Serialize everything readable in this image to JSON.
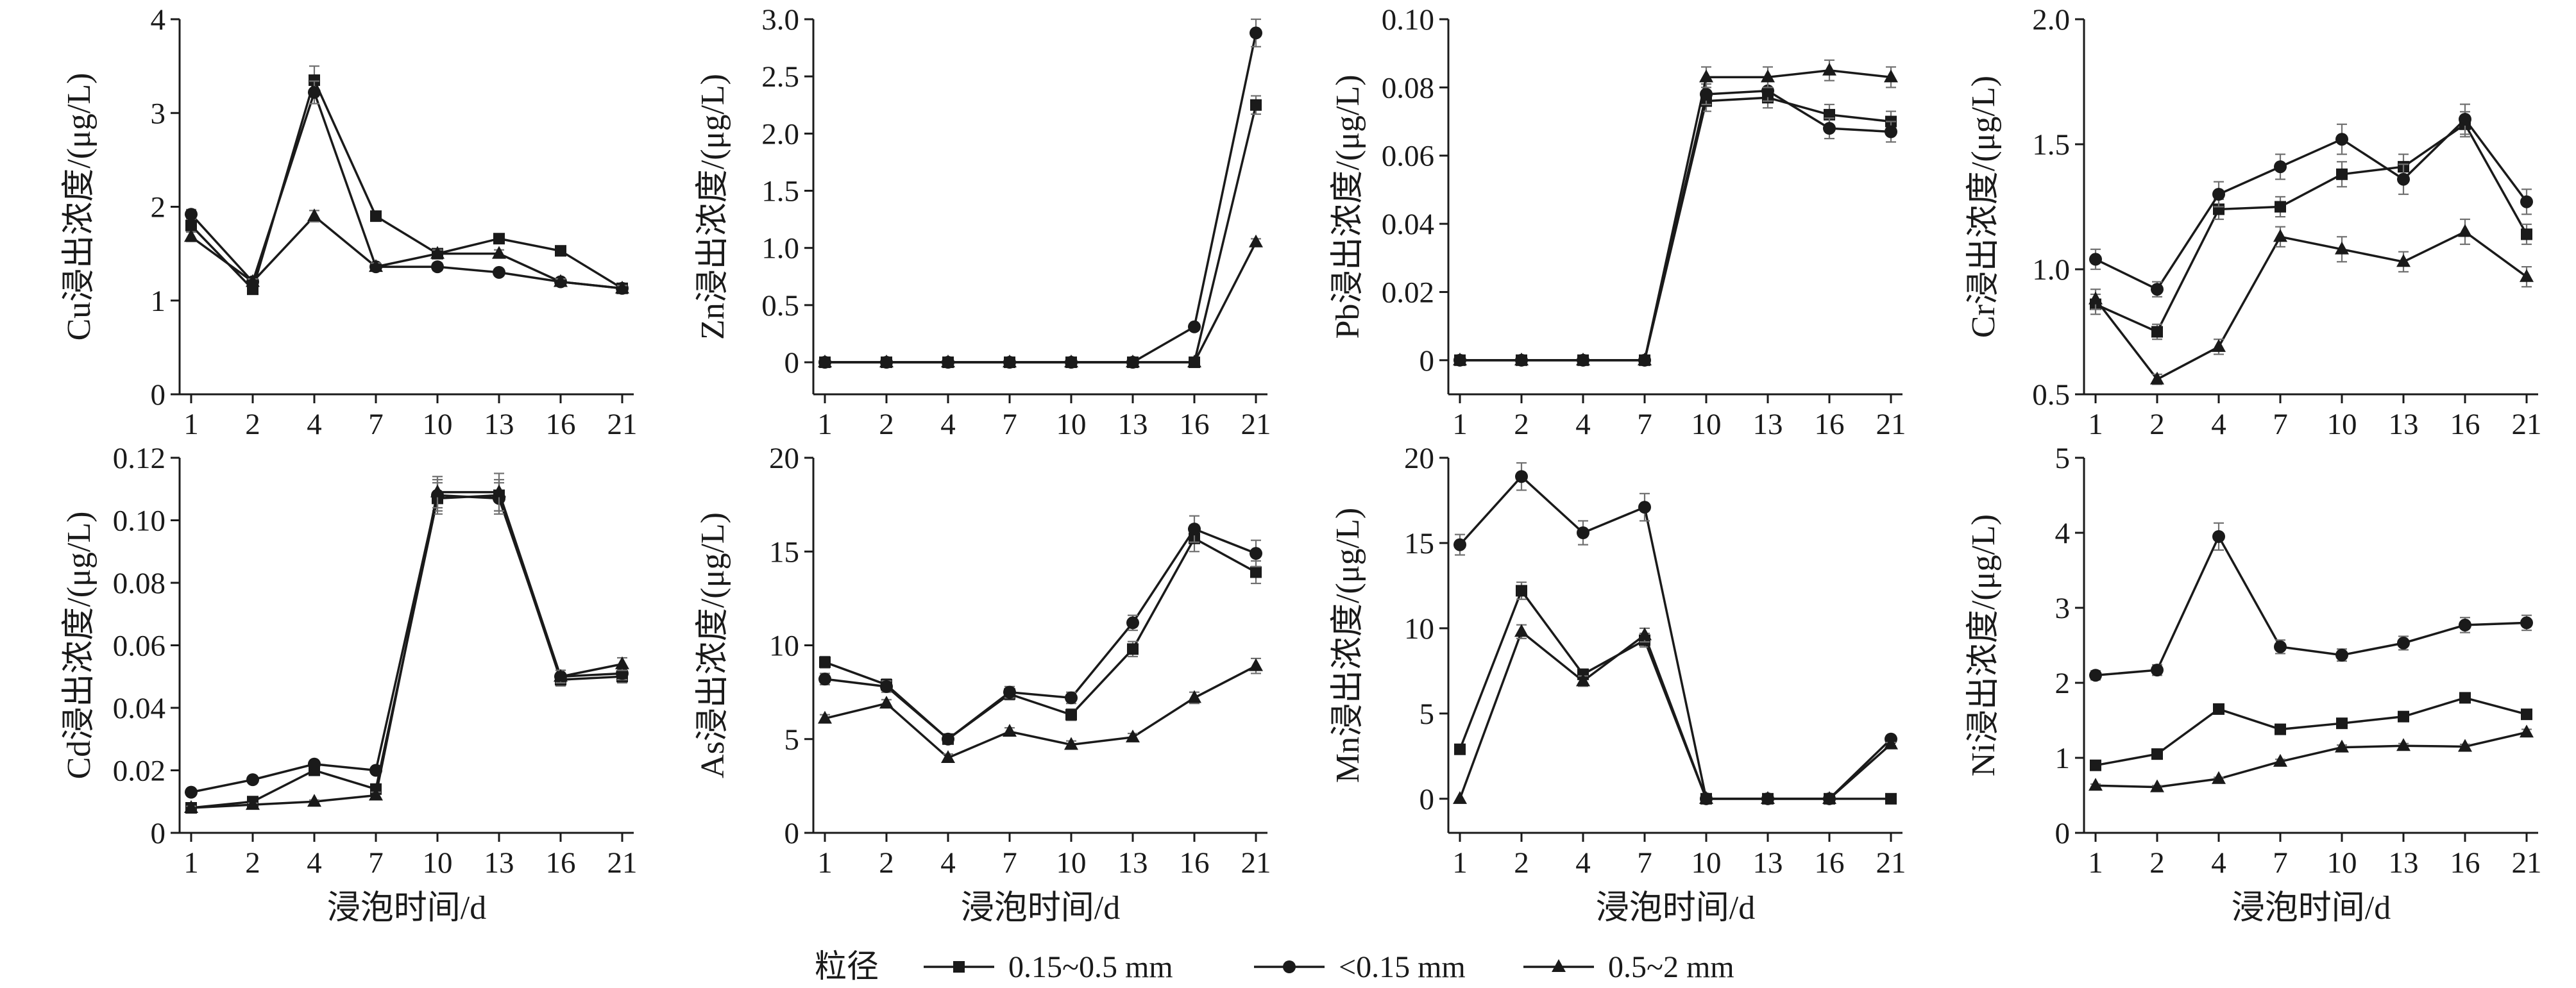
{
  "figure": {
    "x_ticks": [
      "1",
      "2",
      "4",
      "7",
      "10",
      "13",
      "16",
      "21"
    ],
    "x_label": "浸泡时间/d",
    "legend": {
      "title": "粒径",
      "items": [
        {
          "label": "0.15~0.5 mm",
          "marker": "square"
        },
        {
          "label": "<0.15 mm",
          "marker": "circle"
        },
        {
          "label": "0.5~2 mm",
          "marker": "triangle"
        }
      ]
    },
    "colors": {
      "ink": "#1a1a1a",
      "error": "#707070",
      "background": "#ffffff"
    }
  },
  "chart_data": [
    {
      "type": "line",
      "title": "",
      "xlabel": "",
      "ylabel": "Cu浸出浓度/(μg/L)",
      "categories": [
        "1",
        "2",
        "4",
        "7",
        "10",
        "13",
        "16",
        "21"
      ],
      "ylim": [
        0,
        4
      ],
      "yticks": [
        0,
        1,
        2,
        3,
        4
      ],
      "ytick_labels": [
        "0",
        "1",
        "2",
        "3",
        "4"
      ],
      "series": [
        {
          "name": "0.15~0.5 mm",
          "values": [
            1.8,
            1.12,
            3.35,
            1.9,
            1.5,
            1.66,
            1.53,
            1.13
          ],
          "errors": [
            0.05,
            0.03,
            0.15,
            0.05,
            0.04,
            0.05,
            0.04,
            0.03
          ]
        },
        {
          "name": "<0.15 mm",
          "values": [
            1.92,
            1.2,
            3.22,
            1.36,
            1.36,
            1.3,
            1.2,
            1.13
          ],
          "errors": [
            0.05,
            0.03,
            0.12,
            0.04,
            0.04,
            0.03,
            0.03,
            0.03
          ]
        },
        {
          "name": "0.5~2 mm",
          "values": [
            1.68,
            1.2,
            1.9,
            1.36,
            1.5,
            1.5,
            1.2,
            1.13
          ],
          "errors": [
            0.05,
            0.03,
            0.06,
            0.04,
            0.04,
            0.04,
            0.03,
            0.03
          ]
        }
      ]
    },
    {
      "type": "line",
      "title": "",
      "xlabel": "",
      "ylabel": "Zn浸出浓度/(μg/L)",
      "categories": [
        "1",
        "2",
        "4",
        "7",
        "10",
        "13",
        "16",
        "21"
      ],
      "ylim": [
        -0.28,
        3.0
      ],
      "yticks": [
        0,
        0.5,
        1.0,
        1.5,
        2.0,
        2.5,
        3.0
      ],
      "ytick_labels": [
        "0",
        "0.5",
        "1.0",
        "1.5",
        "2.0",
        "2.5",
        "3.0"
      ],
      "series": [
        {
          "name": "0.15~0.5 mm",
          "values": [
            0,
            0,
            0,
            0,
            0,
            0,
            0,
            2.25
          ],
          "errors": [
            0,
            0,
            0,
            0,
            0,
            0,
            0,
            0.08
          ]
        },
        {
          "name": "<0.15 mm",
          "values": [
            0,
            0,
            0,
            0,
            0,
            0,
            0.31,
            2.88
          ],
          "errors": [
            0,
            0,
            0,
            0,
            0,
            0,
            0.02,
            0.12
          ]
        },
        {
          "name": "0.5~2 mm",
          "values": [
            0,
            0,
            0,
            0,
            0,
            0,
            0,
            1.05
          ],
          "errors": [
            0,
            0,
            0,
            0,
            0,
            0,
            0,
            0.03
          ]
        }
      ]
    },
    {
      "type": "line",
      "title": "",
      "xlabel": "",
      "ylabel": "Pb浸出浓度/(μg/L)",
      "categories": [
        "1",
        "2",
        "4",
        "7",
        "10",
        "13",
        "16",
        "21"
      ],
      "ylim": [
        -0.01,
        0.1
      ],
      "yticks": [
        0,
        0.02,
        0.04,
        0.06,
        0.08,
        0.1
      ],
      "ytick_labels": [
        "0",
        "0.02",
        "0.04",
        "0.06",
        "0.08",
        "0.10"
      ],
      "series": [
        {
          "name": "0.15~0.5 mm",
          "values": [
            0,
            0,
            0,
            0,
            0.076,
            0.077,
            0.072,
            0.07
          ],
          "errors": [
            0,
            0,
            0,
            0,
            0.003,
            0.003,
            0.003,
            0.003
          ]
        },
        {
          "name": "<0.15 mm",
          "values": [
            0,
            0,
            0,
            0,
            0.078,
            0.079,
            0.068,
            0.067
          ],
          "errors": [
            0,
            0,
            0,
            0,
            0.003,
            0.003,
            0.003,
            0.003
          ]
        },
        {
          "name": "0.5~2 mm",
          "values": [
            0,
            0,
            0,
            0,
            0.083,
            0.083,
            0.085,
            0.083
          ],
          "errors": [
            0,
            0,
            0,
            0,
            0.003,
            0.003,
            0.003,
            0.003
          ]
        }
      ]
    },
    {
      "type": "line",
      "title": "",
      "xlabel": "",
      "ylabel": "Cr浸出浓度/(μg/L)",
      "categories": [
        "1",
        "2",
        "4",
        "7",
        "10",
        "13",
        "16",
        "21"
      ],
      "ylim": [
        0.5,
        2.0
      ],
      "yticks": [
        0.5,
        1.0,
        1.5,
        2.0
      ],
      "ytick_labels": [
        "0.5",
        "1.0",
        "1.5",
        "2.0"
      ],
      "series": [
        {
          "name": "0.15~0.5 mm",
          "values": [
            0.86,
            0.75,
            1.24,
            1.25,
            1.38,
            1.41,
            1.58,
            1.14
          ],
          "errors": [
            0.04,
            0.03,
            0.04,
            0.04,
            0.05,
            0.05,
            0.05,
            0.04
          ]
        },
        {
          "name": "<0.15 mm",
          "values": [
            1.04,
            0.92,
            1.3,
            1.41,
            1.52,
            1.36,
            1.6,
            1.27
          ],
          "errors": [
            0.04,
            0.03,
            0.05,
            0.05,
            0.06,
            0.06,
            0.06,
            0.05
          ]
        },
        {
          "name": "0.5~2 mm",
          "values": [
            0.88,
            0.56,
            0.69,
            1.13,
            1.08,
            1.03,
            1.15,
            0.97
          ],
          "errors": [
            0.04,
            0.02,
            0.03,
            0.04,
            0.05,
            0.04,
            0.05,
            0.04
          ]
        }
      ]
    },
    {
      "type": "line",
      "title": "",
      "xlabel": "浸泡时间/d",
      "ylabel": "Cd浸出浓度/(μg/L)",
      "categories": [
        "1",
        "2",
        "4",
        "7",
        "10",
        "13",
        "16",
        "21"
      ],
      "ylim": [
        0,
        0.12
      ],
      "yticks": [
        0,
        0.02,
        0.04,
        0.06,
        0.08,
        0.1,
        0.12
      ],
      "ytick_labels": [
        "0",
        "0.02",
        "0.04",
        "0.06",
        "0.08",
        "0.10",
        "0.12"
      ],
      "series": [
        {
          "name": "0.15~0.5 mm",
          "values": [
            0.008,
            0.01,
            0.02,
            0.014,
            0.107,
            0.108,
            0.049,
            0.05
          ],
          "errors": [
            0.0005,
            0.0005,
            0.001,
            0.001,
            0.005,
            0.005,
            0.002,
            0.002
          ]
        },
        {
          "name": "<0.15 mm",
          "values": [
            0.013,
            0.017,
            0.022,
            0.02,
            0.108,
            0.107,
            0.05,
            0.051
          ],
          "errors": [
            0.0005,
            0.0005,
            0.001,
            0.001,
            0.005,
            0.005,
            0.002,
            0.002
          ]
        },
        {
          "name": "0.5~2 mm",
          "values": [
            0.008,
            0.009,
            0.01,
            0.012,
            0.109,
            0.109,
            0.05,
            0.054
          ],
          "errors": [
            0.0005,
            0.0005,
            0.0005,
            0.001,
            0.005,
            0.006,
            0.002,
            0.002
          ]
        }
      ]
    },
    {
      "type": "line",
      "title": "",
      "xlabel": "浸泡时间/d",
      "ylabel": "As浸出浓度/(μg/L)",
      "categories": [
        "1",
        "2",
        "4",
        "7",
        "10",
        "13",
        "16",
        "21"
      ],
      "ylim": [
        0,
        20
      ],
      "yticks": [
        0,
        5,
        10,
        15,
        20
      ],
      "ytick_labels": [
        "0",
        "5",
        "10",
        "15",
        "20"
      ],
      "series": [
        {
          "name": "0.15~0.5 mm",
          "values": [
            9.1,
            7.9,
            5.0,
            7.4,
            6.3,
            9.8,
            15.7,
            13.9
          ],
          "errors": [
            0.3,
            0.3,
            0.2,
            0.3,
            0.3,
            0.4,
            0.7,
            0.6
          ]
        },
        {
          "name": "<0.15 mm",
          "values": [
            8.2,
            7.8,
            5.0,
            7.5,
            7.2,
            11.2,
            16.2,
            14.9
          ],
          "errors": [
            0.3,
            0.3,
            0.2,
            0.3,
            0.3,
            0.4,
            0.7,
            0.7
          ]
        },
        {
          "name": "0.5~2 mm",
          "values": [
            6.1,
            6.9,
            4.0,
            5.4,
            4.7,
            5.1,
            7.2,
            8.9
          ],
          "errors": [
            0.2,
            0.2,
            0.2,
            0.2,
            0.2,
            0.2,
            0.3,
            0.4
          ]
        }
      ]
    },
    {
      "type": "line",
      "title": "",
      "xlabel": "浸泡时间/d",
      "ylabel": "Mn浸出浓度/(μg/L)",
      "categories": [
        "1",
        "2",
        "4",
        "7",
        "10",
        "13",
        "16",
        "21"
      ],
      "ylim": [
        -2,
        20
      ],
      "yticks": [
        0,
        5,
        10,
        15,
        20
      ],
      "ytick_labels": [
        "0",
        "5",
        "10",
        "15",
        "20"
      ],
      "series": [
        {
          "name": "0.15~0.5 mm",
          "values": [
            2.9,
            12.2,
            7.3,
            9.3,
            0,
            0,
            0,
            0
          ],
          "errors": [
            0.1,
            0.5,
            0.3,
            0.4,
            0,
            0,
            0,
            0
          ]
        },
        {
          "name": "<0.15 mm",
          "values": [
            14.9,
            18.9,
            15.6,
            17.1,
            0,
            0,
            0,
            3.5
          ],
          "errors": [
            0.6,
            0.8,
            0.7,
            0.8,
            0,
            0,
            0,
            0.1
          ]
        },
        {
          "name": "0.5~2 mm",
          "values": [
            0,
            9.8,
            6.9,
            9.6,
            0,
            0,
            0,
            3.2
          ],
          "errors": [
            0,
            0.4,
            0.3,
            0.4,
            0,
            0,
            0,
            0.1
          ]
        }
      ]
    },
    {
      "type": "line",
      "title": "",
      "xlabel": "浸泡时间/d",
      "ylabel": "Ni浸出浓度/(μg/L)",
      "categories": [
        "1",
        "2",
        "4",
        "7",
        "10",
        "13",
        "16",
        "21"
      ],
      "ylim": [
        0,
        5
      ],
      "yticks": [
        0,
        1,
        2,
        3,
        4,
        5
      ],
      "ytick_labels": [
        "0",
        "1",
        "2",
        "3",
        "4",
        "5"
      ],
      "series": [
        {
          "name": "0.15~0.5 mm",
          "values": [
            0.9,
            1.05,
            1.65,
            1.38,
            1.46,
            1.55,
            1.8,
            1.58
          ],
          "errors": [
            0.03,
            0.03,
            0.05,
            0.04,
            0.04,
            0.04,
            0.05,
            0.04
          ]
        },
        {
          "name": "<0.15 mm",
          "values": [
            2.1,
            2.17,
            3.95,
            2.48,
            2.37,
            2.53,
            2.77,
            2.8
          ],
          "errors": [
            0.06,
            0.07,
            0.18,
            0.09,
            0.08,
            0.09,
            0.1,
            0.1
          ]
        },
        {
          "name": "0.5~2 mm",
          "values": [
            0.63,
            0.61,
            0.72,
            0.95,
            1.14,
            1.16,
            1.15,
            1.34
          ],
          "errors": [
            0.02,
            0.02,
            0.02,
            0.03,
            0.03,
            0.03,
            0.03,
            0.04
          ]
        }
      ]
    }
  ]
}
